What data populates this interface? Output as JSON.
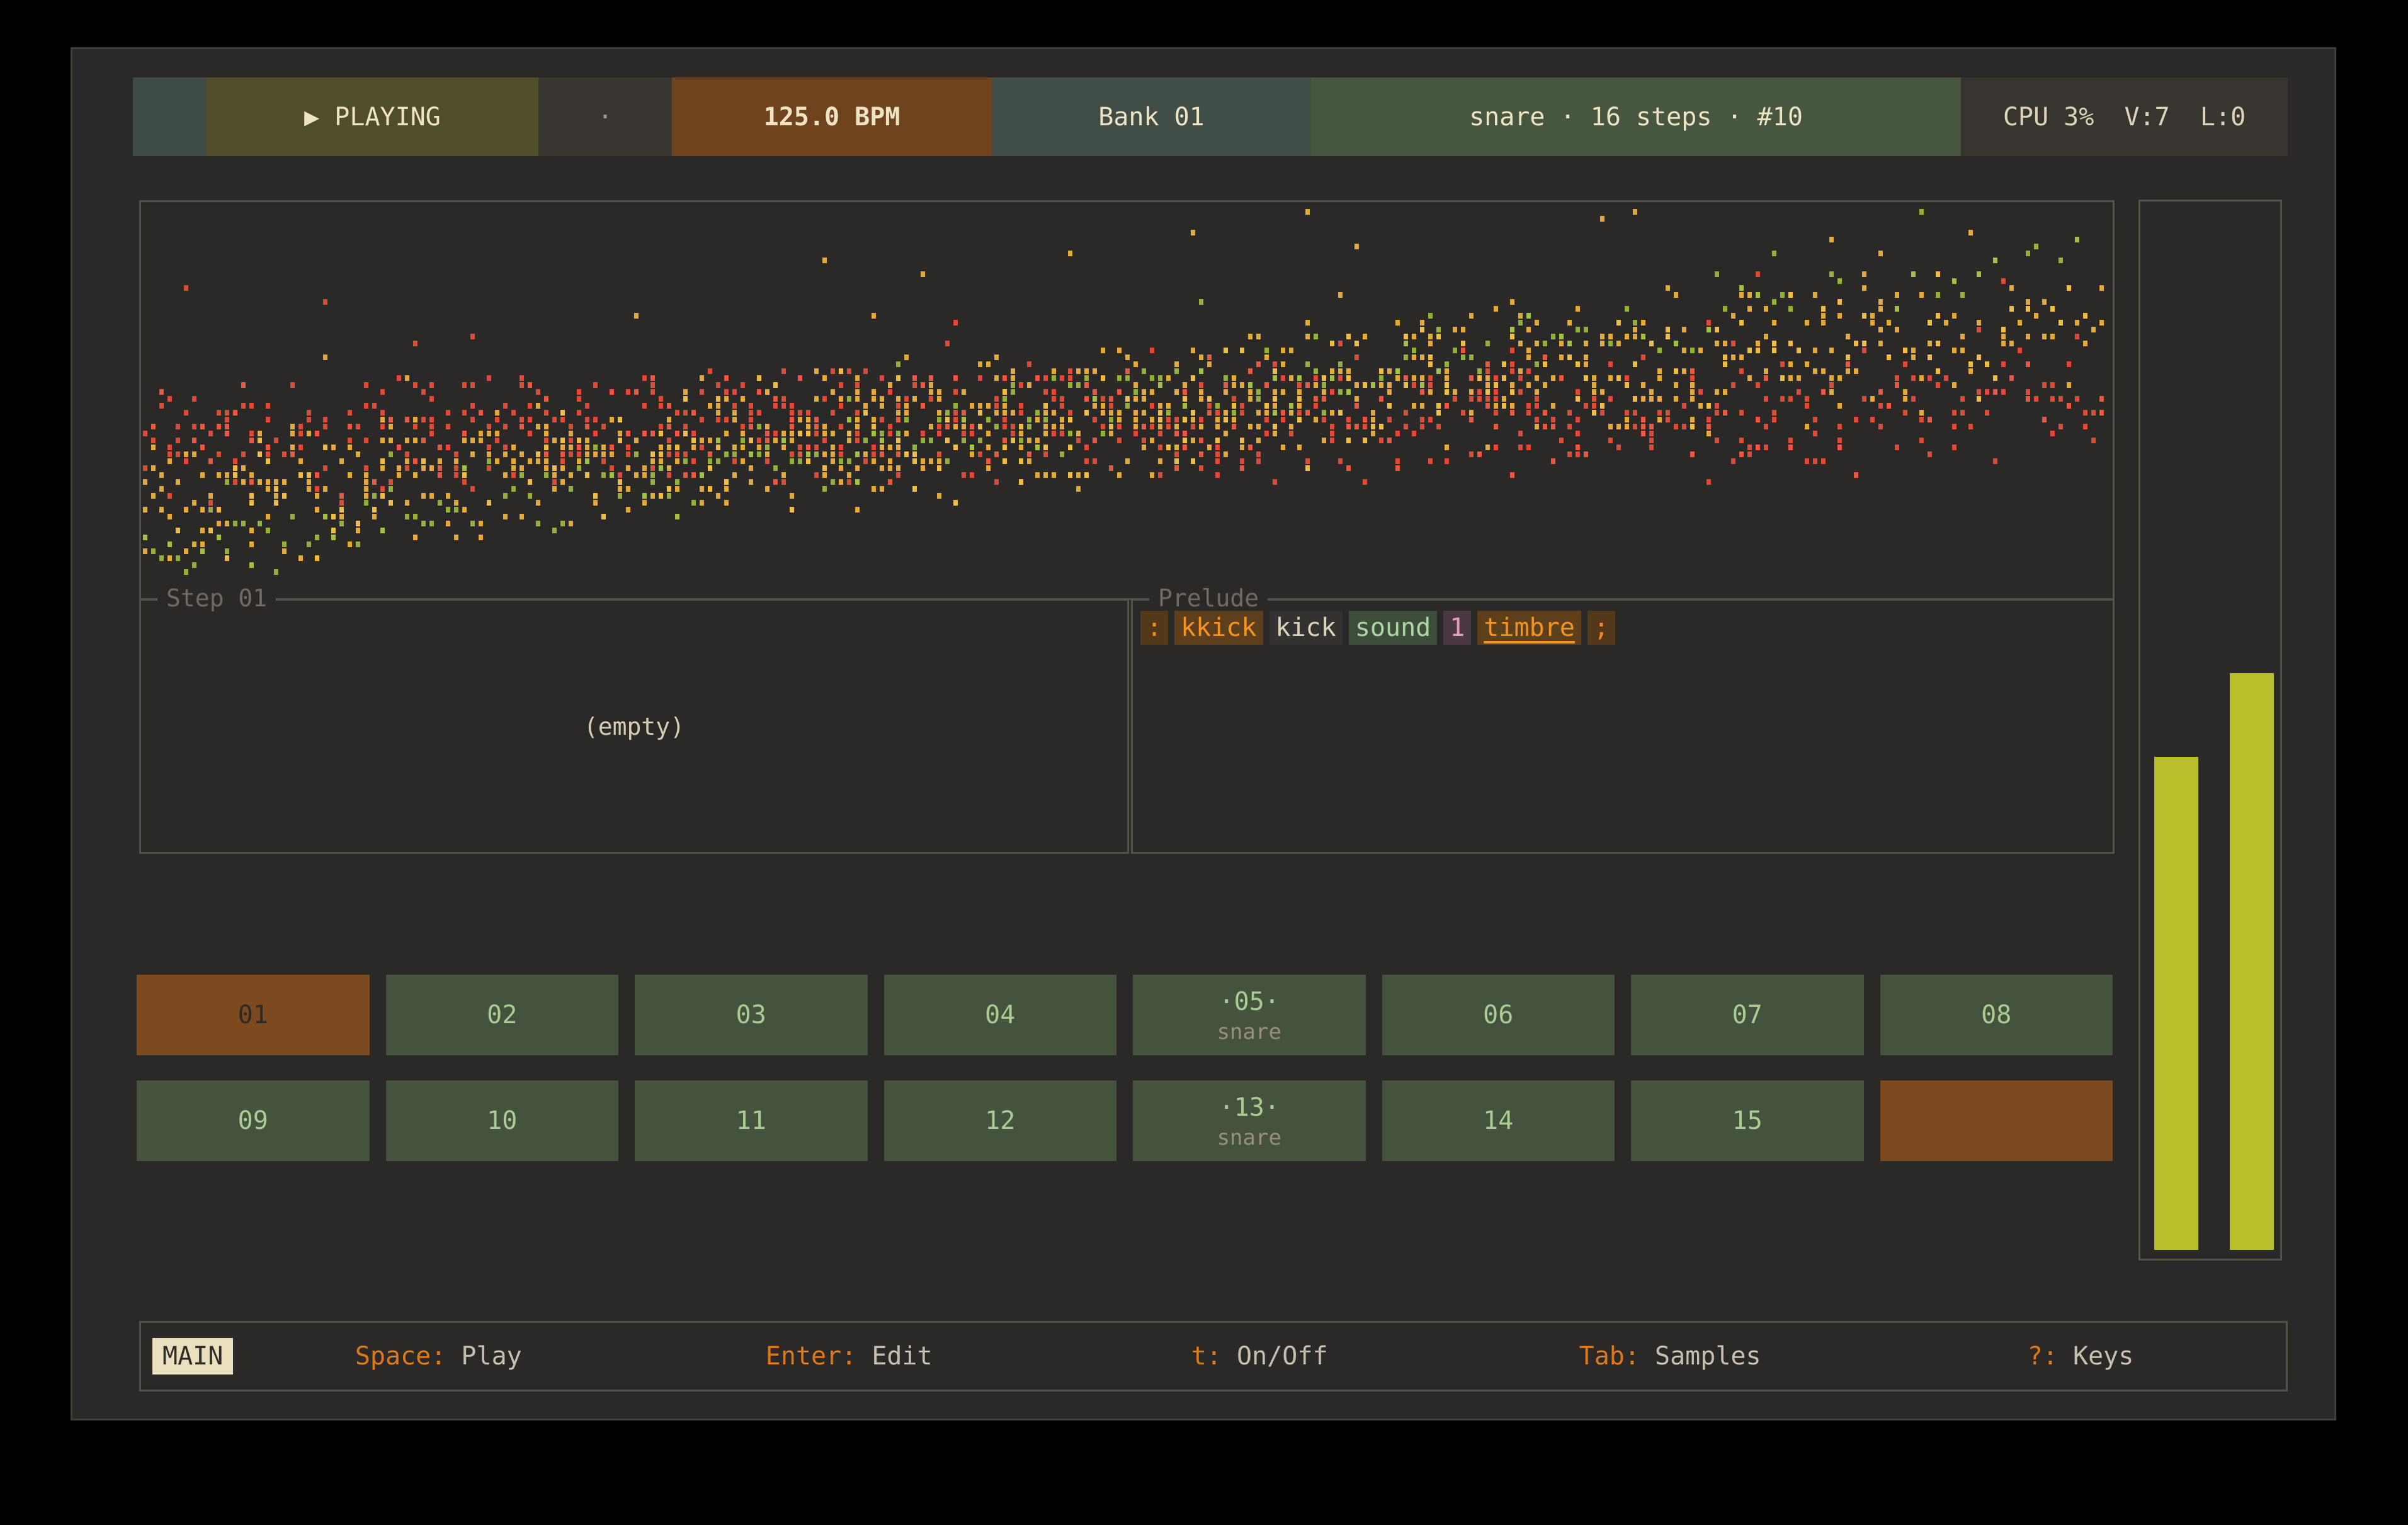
{
  "topbar": {
    "transport": "▶ PLAYING",
    "separator": "·",
    "bpm": "125.0 BPM",
    "bank": "Bank 01",
    "track_info": "snare · 16 steps · #10",
    "system_status": "CPU 3%  V:7  L:0"
  },
  "step_panel": {
    "title": "Step 01",
    "empty_text": "(empty)"
  },
  "prelude_panel": {
    "title": "Prelude",
    "tokens": [
      {
        "text": ":",
        "fg": "#ee8822",
        "bg": "#53391a",
        "underline": false
      },
      {
        "text": "kkick",
        "fg": "#f59422",
        "bg": "#5d3f1c",
        "underline": false
      },
      {
        "text": "kick",
        "fg": "#ddd5bb",
        "bg": "#343230",
        "underline": false
      },
      {
        "text": "sound",
        "fg": "#abd8a2",
        "bg": "#3e4d39",
        "underline": false
      },
      {
        "text": "1",
        "fg": "#e3a0b8",
        "bg": "#4b3843",
        "underline": false
      },
      {
        "text": "timbre",
        "fg": "#f59422",
        "bg": "#5d3f1c",
        "underline": true
      },
      {
        "text": ";",
        "fg": "#ee8822",
        "bg": "#53391a",
        "underline": false
      }
    ]
  },
  "steps": {
    "cells": [
      {
        "label": "01",
        "sublabel": "",
        "state": "selected"
      },
      {
        "label": "02",
        "sublabel": "",
        "state": "normal"
      },
      {
        "label": "03",
        "sublabel": "",
        "state": "normal"
      },
      {
        "label": "04",
        "sublabel": "",
        "state": "normal"
      },
      {
        "label": "·05·",
        "sublabel": "snare",
        "state": "normal"
      },
      {
        "label": "06",
        "sublabel": "",
        "state": "normal"
      },
      {
        "label": "07",
        "sublabel": "",
        "state": "normal"
      },
      {
        "label": "08",
        "sublabel": "",
        "state": "normal"
      },
      {
        "label": "09",
        "sublabel": "",
        "state": "normal"
      },
      {
        "label": "10",
        "sublabel": "",
        "state": "normal"
      },
      {
        "label": "11",
        "sublabel": "",
        "state": "normal"
      },
      {
        "label": "12",
        "sublabel": "",
        "state": "normal"
      },
      {
        "label": "·13·",
        "sublabel": "snare",
        "state": "normal"
      },
      {
        "label": "14",
        "sublabel": "",
        "state": "normal"
      },
      {
        "label": "15",
        "sublabel": "",
        "state": "normal"
      },
      {
        "label": "",
        "sublabel": "",
        "state": "playhead"
      }
    ]
  },
  "meters": {
    "levels": [
      0.47,
      0.55
    ],
    "color": "#b9be2b"
  },
  "visualizer": {
    "seed": 1337,
    "dot": {
      "width": 7,
      "height": 9,
      "pitch_x": 13,
      "pitch_y": 11
    },
    "series": [
      {
        "name": "red",
        "colors": [
          "#dd4a37",
          "#e85843"
        ],
        "start": 0.6,
        "end": 0.5,
        "spread": 55,
        "density": 4.2,
        "outlier": 0.03,
        "outlier_ramp_right": true
      },
      {
        "name": "yellow",
        "colors": [
          "#e4a93b",
          "#efbd45"
        ],
        "start": 0.76,
        "end": 0.3,
        "spread": 63,
        "density": 4.4,
        "outlier": 0.06,
        "outlier_ramp_right": false
      },
      {
        "name": "green",
        "colors": [
          "#93b13a",
          "#a2c044"
        ],
        "start": 0.89,
        "end": 0.12,
        "spread": 34,
        "density": 1.4,
        "outlier": 0.045,
        "outlier_ramp_right": false
      }
    ]
  },
  "bottombar": {
    "mode": "MAIN",
    "hints": [
      {
        "key": "Space",
        "desc": "Play"
      },
      {
        "key": "Enter",
        "desc": "Edit"
      },
      {
        "key": "t",
        "desc": "On/Off"
      },
      {
        "key": "Tab",
        "desc": "Samples"
      },
      {
        "key": "?",
        "desc": "Keys"
      }
    ]
  }
}
